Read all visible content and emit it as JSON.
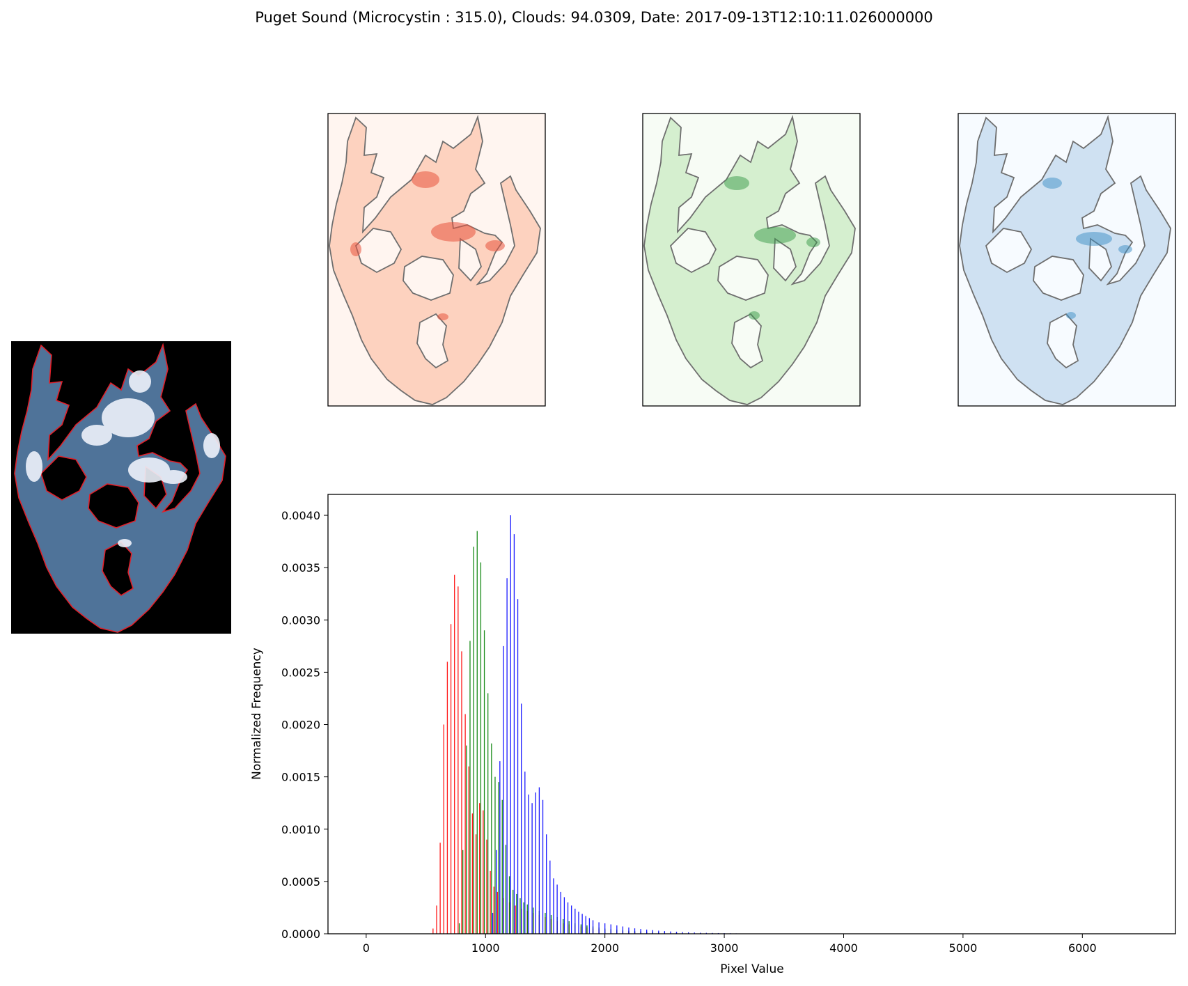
{
  "figure": {
    "title": "Puget Sound (Microcystin : 315.0), Clouds: 94.0309, Date: 2017-09-13T12:10:11.026000000"
  },
  "panels": {
    "rgb": {
      "background": "#000000",
      "water": "#4f7399",
      "outline": "#e0202a",
      "cloud": "#eef2fb"
    },
    "red_band": {
      "colormap": "Reds",
      "background": "#fff5f0",
      "fill": "#fdd2bf",
      "hotspot": "#e8533d"
    },
    "green_band": {
      "colormap": "Greens",
      "background": "#f7fcf5",
      "fill": "#d5efcf",
      "hotspot": "#3a9a4a"
    },
    "blue_band": {
      "colormap": "Blues",
      "background": "#f7fbff",
      "fill": "#cfe1f2",
      "hotspot": "#3d8fc6"
    },
    "outline_color": "#6e6e6e"
  },
  "chart_data": {
    "type": "bar",
    "title": "",
    "xlabel": "Pixel Value",
    "ylabel": "Normalized Frequency",
    "xlim": [
      -320,
      6780
    ],
    "ylim": [
      0,
      0.0042
    ],
    "xticks": [
      0,
      1000,
      2000,
      3000,
      4000,
      5000,
      6000
    ],
    "xtick_labels": [
      "0",
      "1000",
      "2000",
      "3000",
      "4000",
      "5000",
      "6000"
    ],
    "yticks": [
      0,
      0.0005,
      0.001,
      0.0015,
      0.002,
      0.0025,
      0.003,
      0.0035,
      0.004
    ],
    "ytick_labels": [
      "0.0000",
      "0.0005",
      "0.0010",
      "0.0015",
      "0.0020",
      "0.0025",
      "0.0030",
      "0.0035",
      "0.0040"
    ],
    "grid": false,
    "series": [
      {
        "color": "#ff0000",
        "x": [
          560,
          590,
          620,
          650,
          680,
          710,
          740,
          770,
          800,
          830,
          860,
          890,
          920,
          950,
          980,
          1010,
          1040,
          1070,
          1100,
          1150,
          1200,
          1250,
          1300,
          1350,
          1400,
          1450,
          1500,
          1550,
          1600,
          1650,
          1700,
          1750,
          1800,
          1850,
          1900,
          1950,
          2000,
          2050,
          2100,
          2150,
          2200,
          2250,
          2300,
          2350,
          2400,
          2450,
          2500,
          2600,
          2700,
          2800,
          2900,
          3000,
          3100
        ],
        "values": [
          5e-05,
          0.00027,
          0.00087,
          0.002,
          0.0026,
          0.00296,
          0.00343,
          0.00332,
          0.0027,
          0.0021,
          0.0016,
          0.00115,
          0.00095,
          0.00125,
          0.00118,
          0.0009,
          0.0006,
          0.00045,
          0.0004,
          0.00034,
          0.0003,
          0.00027,
          0.00024,
          0.00022,
          0.0002,
          0.00018,
          0.00016,
          0.00014,
          0.00012,
          0.0001,
          9e-05,
          8e-05,
          7e-05,
          6e-05,
          5e-05,
          4.5e-05,
          4e-05,
          3.5e-05,
          3e-05,
          2.5e-05,
          2.2e-05,
          2e-05,
          1.8e-05,
          1.6e-05,
          1.4e-05,
          1.2e-05,
          1e-05,
          8e-06,
          6e-06,
          5e-06,
          4e-06,
          3e-06,
          2e-06
        ]
      },
      {
        "color": "#008000",
        "x": [
          780,
          810,
          840,
          870,
          900,
          930,
          960,
          990,
          1020,
          1050,
          1080,
          1110,
          1140,
          1170,
          1200,
          1230,
          1260,
          1290,
          1320,
          1350,
          1400,
          1450,
          1500,
          1550,
          1600,
          1650,
          1700,
          1750,
          1800,
          1850,
          1900,
          1950,
          2000,
          2050,
          2100,
          2150,
          2200,
          2250,
          2300,
          2350,
          2400,
          2450,
          2500,
          2600,
          2700,
          2800,
          2900,
          3000,
          3100,
          3200
        ],
        "values": [
          0.0001,
          0.0008,
          0.0018,
          0.0028,
          0.0037,
          0.00385,
          0.00355,
          0.0029,
          0.0023,
          0.00182,
          0.0015,
          0.00145,
          0.00128,
          0.00085,
          0.00055,
          0.00042,
          0.00038,
          0.00034,
          0.0003,
          0.00028,
          0.00025,
          0.00022,
          0.0002,
          0.00018,
          0.00016,
          0.00014,
          0.00012,
          0.0001,
          9e-05,
          8e-05,
          7e-05,
          6e-05,
          5e-05,
          4.5e-05,
          4e-05,
          3.5e-05,
          3e-05,
          2.7e-05,
          2.4e-05,
          2.1e-05,
          1.8e-05,
          1.5e-05,
          1.2e-05,
          1e-05,
          8e-06,
          6e-06,
          5e-06,
          4e-06,
          3e-06,
          2e-06
        ]
      },
      {
        "color": "#0000ff",
        "x": [
          1060,
          1090,
          1120,
          1150,
          1180,
          1210,
          1240,
          1270,
          1300,
          1330,
          1360,
          1390,
          1420,
          1450,
          1480,
          1510,
          1540,
          1570,
          1600,
          1630,
          1660,
          1690,
          1720,
          1750,
          1780,
          1810,
          1840,
          1870,
          1900,
          1950,
          2000,
          2050,
          2100,
          2150,
          2200,
          2250,
          2300,
          2350,
          2400,
          2450,
          2500,
          2550,
          2600,
          2650,
          2700,
          2750,
          2800,
          2850,
          2900,
          2950,
          3000,
          3050,
          3100,
          3150,
          3200,
          3250
        ],
        "values": [
          0.0002,
          0.0008,
          0.00165,
          0.00275,
          0.0034,
          0.004,
          0.00382,
          0.0032,
          0.0022,
          0.00155,
          0.00133,
          0.00125,
          0.00135,
          0.0014,
          0.00128,
          0.00095,
          0.0007,
          0.00053,
          0.00047,
          0.0004,
          0.00035,
          0.0003,
          0.00027,
          0.00024,
          0.00021,
          0.00019,
          0.00017,
          0.00015,
          0.00013,
          0.00011,
          0.0001,
          9e-05,
          8e-05,
          7e-05,
          6e-05,
          5.2e-05,
          4.6e-05,
          4e-05,
          3.5e-05,
          3e-05,
          2.6e-05,
          2.2e-05,
          1.9e-05,
          1.6e-05,
          1.4e-05,
          1.2e-05,
          1e-05,
          9e-06,
          8e-06,
          7e-06,
          6e-06,
          5e-06,
          4e-06,
          3e-06,
          3e-06,
          2e-06
        ]
      }
    ]
  }
}
